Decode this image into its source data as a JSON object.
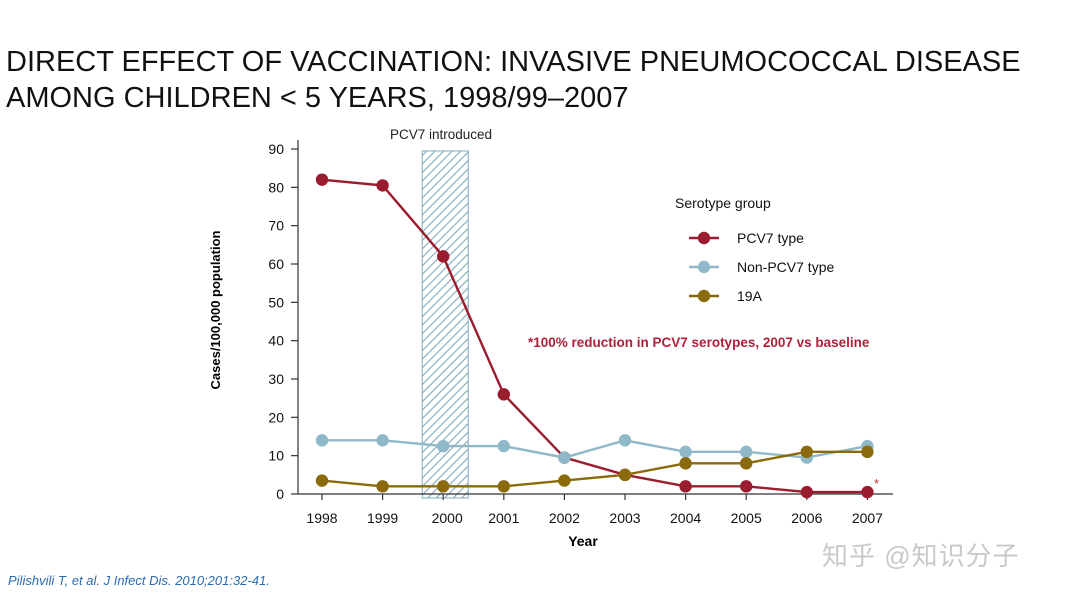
{
  "title": {
    "line1": "DIRECT EFFECT OF VACCINATION: INVASIVE PNEUMOCOCCAL DISEASE",
    "line2": "AMONG CHILDREN < 5 YEARS, 1998/99–2007"
  },
  "citation": "Pilishvili T, et al. J Infect Dis. 2010;201:32-41.",
  "watermark": "知乎 @知识分子",
  "chart_data": {
    "type": "line",
    "xlabel": "Year",
    "ylabel": "Cases/100,000 population",
    "ylim": [
      0,
      90
    ],
    "y_ticks": [
      0,
      10,
      20,
      30,
      40,
      50,
      60,
      70,
      80,
      90
    ],
    "x": [
      "1998",
      "1999",
      "2000",
      "2001",
      "2002",
      "2003",
      "2004",
      "2005",
      "2006",
      "2007"
    ],
    "legend_title": "Serotype group",
    "legend_position": "right",
    "series": [
      {
        "name": "PCV7 type",
        "color": "#9b1c2e",
        "values": [
          82,
          80.5,
          62,
          26,
          9.5,
          5,
          2,
          2,
          0.5,
          0.5
        ]
      },
      {
        "name": "Non-PCV7 type",
        "color": "#8fb8c8",
        "values": [
          14,
          14,
          12.5,
          12.5,
          9.5,
          14,
          11,
          11,
          9.5,
          12.5
        ]
      },
      {
        "name": "19A",
        "color": "#8a6a0a",
        "values": [
          3.5,
          2,
          2,
          2,
          3.5,
          5,
          8,
          8,
          11,
          11
        ]
      }
    ],
    "shaded_region": {
      "label": "PCV7 introduced",
      "from_value": 2000
    },
    "annotation": {
      "text": "*100% reduction in PCV7 serotypes, 2007 vs baseline",
      "color": "#b0203a"
    },
    "end_marker": "*",
    "grid": false
  }
}
